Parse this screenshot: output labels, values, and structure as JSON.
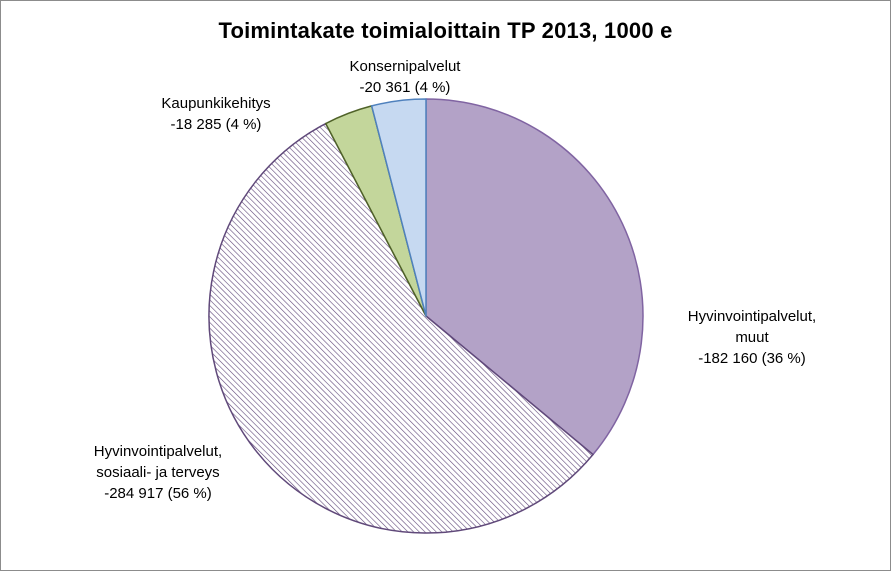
{
  "chart_data": {
    "type": "pie",
    "title": "Toimintakate toimialoittain TP  2013, 1000 e",
    "slices": [
      {
        "name": "Hyvinvointipalvelut, muut",
        "value": -182160,
        "percent": 36,
        "label_lines": [
          "Hyvinvointipalvelut,",
          "muut",
          "-182 160  (36 %)"
        ],
        "color": "#b3a2c7",
        "stroke": "#8064a2",
        "pattern": "solid"
      },
      {
        "name": "Hyvinvointipalvelut, sosiaali- ja terveys",
        "value": -284917,
        "percent": 56,
        "label_lines": [
          "Hyvinvointipalvelut,",
          "sosiaali- ja terveys",
          "-284 917 (56 %)"
        ],
        "color": "#ffffff",
        "stroke": "#60497a",
        "pattern": "diagonal-hatch"
      },
      {
        "name": "Kaupunkikehitys",
        "value": -18285,
        "percent": 4,
        "label_lines": [
          "Kaupunkikehitys",
          "-18 285 (4 %)"
        ],
        "color": "#c3d69b",
        "stroke": "#4f6228",
        "pattern": "solid"
      },
      {
        "name": "Konsernipalvelut",
        "value": -20361,
        "percent": 4,
        "label_lines": [
          "Konsernipalvelut",
          "-20 361 (4 %)"
        ],
        "color": "#c6d9f1",
        "stroke": "#4f81bd",
        "pattern": "solid"
      }
    ]
  }
}
